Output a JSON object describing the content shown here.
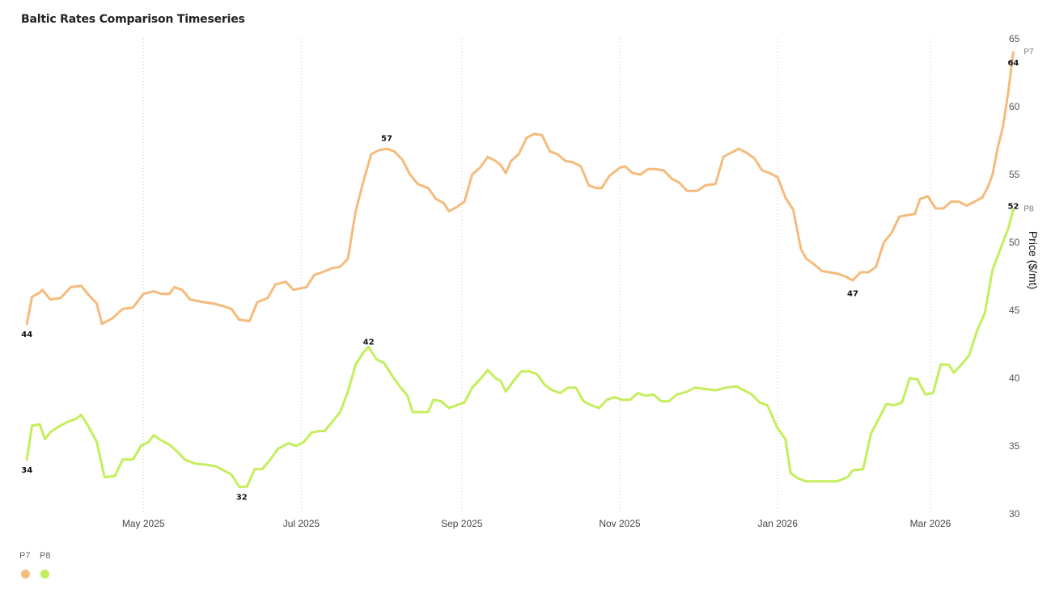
{
  "chart_data": {
    "type": "line",
    "title": "Baltic Rates Comparison Timeseries",
    "ylabel": "Price ($/mt)",
    "xlabel": "",
    "ylim": [
      30,
      65
    ],
    "yticks": [
      30,
      35,
      40,
      45,
      50,
      55,
      60,
      65
    ],
    "xlim": [
      "2025-03-16",
      "2026-03-25"
    ],
    "xticks": [
      {
        "date": "2025-05-01",
        "label": "May 2025"
      },
      {
        "date": "2025-07-01",
        "label": "Jul 2025"
      },
      {
        "date": "2025-09-01",
        "label": "Sep 2025"
      },
      {
        "date": "2025-11-01",
        "label": "Nov 2025"
      },
      {
        "date": "2026-01-01",
        "label": "Jan 2026"
      },
      {
        "date": "2026-03-01",
        "label": "Mar 2026"
      }
    ],
    "vertical_gridlines": true,
    "horizontal_gridlines": false,
    "axis_position": "right",
    "legend_position": "bottom-left",
    "series": [
      {
        "name": "P7",
        "color": "#F5BB7C",
        "points": [
          [
            "2025-03-17",
            44.0
          ],
          [
            "2025-03-19",
            46.0
          ],
          [
            "2025-03-22",
            46.3
          ],
          [
            "2025-03-23",
            46.5
          ],
          [
            "2025-03-26",
            45.8
          ],
          [
            "2025-03-30",
            45.9
          ],
          [
            "2025-04-03",
            46.7
          ],
          [
            "2025-04-07",
            46.8
          ],
          [
            "2025-04-10",
            46.1
          ],
          [
            "2025-04-13",
            45.5
          ],
          [
            "2025-04-15",
            44.0
          ],
          [
            "2025-04-19",
            44.4
          ],
          [
            "2025-04-23",
            45.1
          ],
          [
            "2025-04-27",
            45.2
          ],
          [
            "2025-05-01",
            46.2
          ],
          [
            "2025-05-05",
            46.4
          ],
          [
            "2025-05-08",
            46.2
          ],
          [
            "2025-05-11",
            46.2
          ],
          [
            "2025-05-13",
            46.7
          ],
          [
            "2025-05-16",
            46.5
          ],
          [
            "2025-05-19",
            45.8
          ],
          [
            "2025-05-24",
            45.6
          ],
          [
            "2025-05-28",
            45.5
          ],
          [
            "2025-06-01",
            45.3
          ],
          [
            "2025-06-04",
            45.1
          ],
          [
            "2025-06-07",
            44.3
          ],
          [
            "2025-06-11",
            44.2
          ],
          [
            "2025-06-14",
            45.6
          ],
          [
            "2025-06-18",
            45.9
          ],
          [
            "2025-06-21",
            46.9
          ],
          [
            "2025-06-25",
            47.1
          ],
          [
            "2025-06-28",
            46.5
          ],
          [
            "2025-07-03",
            46.7
          ],
          [
            "2025-07-06",
            47.6
          ],
          [
            "2025-07-09",
            47.8
          ],
          [
            "2025-07-13",
            48.1
          ],
          [
            "2025-07-16",
            48.2
          ],
          [
            "2025-07-19",
            48.8
          ],
          [
            "2025-07-22",
            52.3
          ],
          [
            "2025-07-25",
            54.5
          ],
          [
            "2025-07-28",
            56.5
          ],
          [
            "2025-07-31",
            56.8
          ],
          [
            "2025-08-03",
            56.9
          ],
          [
            "2025-08-06",
            56.7
          ],
          [
            "2025-08-09",
            56.1
          ],
          [
            "2025-08-12",
            55.0
          ],
          [
            "2025-08-15",
            54.3
          ],
          [
            "2025-08-19",
            54.0
          ],
          [
            "2025-08-22",
            53.2
          ],
          [
            "2025-08-25",
            52.9
          ],
          [
            "2025-08-27",
            52.3
          ],
          [
            "2025-08-30",
            52.6
          ],
          [
            "2025-09-02",
            53.0
          ],
          [
            "2025-09-05",
            55.0
          ],
          [
            "2025-09-08",
            55.5
          ],
          [
            "2025-09-11",
            56.3
          ],
          [
            "2025-09-14",
            56.0
          ],
          [
            "2025-09-16",
            55.7
          ],
          [
            "2025-09-18",
            55.1
          ],
          [
            "2025-09-20",
            56.0
          ],
          [
            "2025-09-23",
            56.5
          ],
          [
            "2025-09-26",
            57.7
          ],
          [
            "2025-09-29",
            58.0
          ],
          [
            "2025-10-02",
            57.9
          ],
          [
            "2025-10-05",
            56.7
          ],
          [
            "2025-10-08",
            56.5
          ],
          [
            "2025-10-11",
            56.0
          ],
          [
            "2025-10-14",
            55.9
          ],
          [
            "2025-10-17",
            55.6
          ],
          [
            "2025-10-20",
            54.2
          ],
          [
            "2025-10-23",
            54.0
          ],
          [
            "2025-10-25",
            54.0
          ],
          [
            "2025-10-28",
            54.9
          ],
          [
            "2025-11-01",
            55.5
          ],
          [
            "2025-11-03",
            55.6
          ],
          [
            "2025-11-06",
            55.1
          ],
          [
            "2025-11-09",
            55.0
          ],
          [
            "2025-11-12",
            55.4
          ],
          [
            "2025-11-15",
            55.4
          ],
          [
            "2025-11-18",
            55.3
          ],
          [
            "2025-11-21",
            54.7
          ],
          [
            "2025-11-24",
            54.4
          ],
          [
            "2025-11-27",
            53.8
          ],
          [
            "2025-12-01",
            53.8
          ],
          [
            "2025-12-04",
            54.2
          ],
          [
            "2025-12-08",
            54.3
          ],
          [
            "2025-12-11",
            56.3
          ],
          [
            "2025-12-14",
            56.6
          ],
          [
            "2025-12-17",
            56.9
          ],
          [
            "2025-12-20",
            56.6
          ],
          [
            "2025-12-23",
            56.2
          ],
          [
            "2025-12-26",
            55.3
          ],
          [
            "2025-12-29",
            55.1
          ],
          [
            "2026-01-01",
            54.8
          ],
          [
            "2026-01-04",
            53.3
          ],
          [
            "2026-01-07",
            52.4
          ],
          [
            "2026-01-10",
            49.5
          ],
          [
            "2026-01-12",
            48.8
          ],
          [
            "2026-01-15",
            48.4
          ],
          [
            "2026-01-18",
            47.9
          ],
          [
            "2026-01-21",
            47.8
          ],
          [
            "2026-01-24",
            47.7
          ],
          [
            "2026-01-27",
            47.5
          ],
          [
            "2026-01-30",
            47.2
          ],
          [
            "2026-02-02",
            47.8
          ],
          [
            "2026-02-05",
            47.8
          ],
          [
            "2026-02-08",
            48.2
          ],
          [
            "2026-02-11",
            50.0
          ],
          [
            "2026-02-14",
            50.7
          ],
          [
            "2026-02-17",
            51.9
          ],
          [
            "2026-02-20",
            52.0
          ],
          [
            "2026-02-23",
            52.1
          ],
          [
            "2026-02-25",
            53.2
          ],
          [
            "2026-02-28",
            53.4
          ],
          [
            "2026-03-03",
            52.5
          ],
          [
            "2026-03-06",
            52.5
          ],
          [
            "2026-03-09",
            53.0
          ],
          [
            "2026-03-12",
            53.0
          ],
          [
            "2026-03-15",
            52.7
          ],
          [
            "2026-03-18",
            53.0
          ],
          [
            "2026-03-21",
            53.3
          ],
          [
            "2026-03-23",
            54.0
          ],
          [
            "2026-03-25",
            55.0
          ],
          [
            "2026-03-27",
            57.0
          ],
          [
            "2026-03-29",
            58.5
          ],
          [
            "2026-03-31",
            61.0
          ],
          [
            "2026-04-02",
            64.0
          ]
        ],
        "labels": [
          {
            "date": "2025-03-17",
            "value": 44,
            "text": "44",
            "pos": "below"
          },
          {
            "date": "2025-08-03",
            "value": 57,
            "text": "57",
            "pos": "above"
          },
          {
            "date": "2026-01-30",
            "value": 47,
            "text": "47",
            "pos": "below"
          },
          {
            "date": "2026-04-02",
            "value": 64,
            "text": "64",
            "pos": "below"
          }
        ],
        "end_label": "P7"
      },
      {
        "name": "P8",
        "color": "#C4EE5C",
        "points": [
          [
            "2025-03-17",
            34.0
          ],
          [
            "2025-03-19",
            36.5
          ],
          [
            "2025-03-22",
            36.6
          ],
          [
            "2025-03-24",
            35.5
          ],
          [
            "2025-03-26",
            36.0
          ],
          [
            "2025-03-29",
            36.4
          ],
          [
            "2025-04-02",
            36.8
          ],
          [
            "2025-04-05",
            37.0
          ],
          [
            "2025-04-07",
            37.3
          ],
          [
            "2025-04-09",
            36.7
          ],
          [
            "2025-04-13",
            35.3
          ],
          [
            "2025-04-16",
            32.7
          ],
          [
            "2025-04-20",
            32.8
          ],
          [
            "2025-04-23",
            34.0
          ],
          [
            "2025-04-27",
            34.0
          ],
          [
            "2025-04-30",
            35.0
          ],
          [
            "2025-05-03",
            35.3
          ],
          [
            "2025-05-05",
            35.8
          ],
          [
            "2025-05-08",
            35.4
          ],
          [
            "2025-05-11",
            35.1
          ],
          [
            "2025-05-14",
            34.6
          ],
          [
            "2025-05-17",
            34.0
          ],
          [
            "2025-05-21",
            33.7
          ],
          [
            "2025-05-26",
            33.6
          ],
          [
            "2025-05-29",
            33.5
          ],
          [
            "2025-06-01",
            33.2
          ],
          [
            "2025-06-04",
            32.9
          ],
          [
            "2025-06-07",
            32.0
          ],
          [
            "2025-06-10",
            32.0
          ],
          [
            "2025-06-13",
            33.3
          ],
          [
            "2025-06-16",
            33.3
          ],
          [
            "2025-06-19",
            34.0
          ],
          [
            "2025-06-22",
            34.8
          ],
          [
            "2025-06-26",
            35.2
          ],
          [
            "2025-06-29",
            35.0
          ],
          [
            "2025-07-02",
            35.3
          ],
          [
            "2025-07-05",
            36.0
          ],
          [
            "2025-07-08",
            36.1
          ],
          [
            "2025-07-10",
            36.1
          ],
          [
            "2025-07-13",
            36.8
          ],
          [
            "2025-07-16",
            37.5
          ],
          [
            "2025-07-19",
            39.0
          ],
          [
            "2025-07-22",
            41.0
          ],
          [
            "2025-07-25",
            41.9
          ],
          [
            "2025-07-27",
            42.3
          ],
          [
            "2025-07-30",
            41.4
          ],
          [
            "2025-08-02",
            41.1
          ],
          [
            "2025-08-05",
            40.2
          ],
          [
            "2025-08-08",
            39.4
          ],
          [
            "2025-08-11",
            38.7
          ],
          [
            "2025-08-13",
            37.5
          ],
          [
            "2025-08-16",
            37.5
          ],
          [
            "2025-08-19",
            37.5
          ],
          [
            "2025-08-21",
            38.4
          ],
          [
            "2025-08-24",
            38.3
          ],
          [
            "2025-08-27",
            37.8
          ],
          [
            "2025-08-30",
            38.0
          ],
          [
            "2025-09-02",
            38.2
          ],
          [
            "2025-09-05",
            39.3
          ],
          [
            "2025-09-08",
            39.9
          ],
          [
            "2025-09-11",
            40.6
          ],
          [
            "2025-09-14",
            40.0
          ],
          [
            "2025-09-16",
            39.8
          ],
          [
            "2025-09-18",
            39.0
          ],
          [
            "2025-09-21",
            39.8
          ],
          [
            "2025-09-24",
            40.5
          ],
          [
            "2025-09-27",
            40.5
          ],
          [
            "2025-09-30",
            40.3
          ],
          [
            "2025-10-03",
            39.5
          ],
          [
            "2025-10-06",
            39.1
          ],
          [
            "2025-10-09",
            38.9
          ],
          [
            "2025-10-12",
            39.3
          ],
          [
            "2025-10-15",
            39.3
          ],
          [
            "2025-10-18",
            38.3
          ],
          [
            "2025-10-21",
            38.0
          ],
          [
            "2025-10-24",
            37.8
          ],
          [
            "2025-10-27",
            38.4
          ],
          [
            "2025-10-30",
            38.6
          ],
          [
            "2025-11-02",
            38.4
          ],
          [
            "2025-11-05",
            38.4
          ],
          [
            "2025-11-08",
            38.9
          ],
          [
            "2025-11-11",
            38.7
          ],
          [
            "2025-11-14",
            38.8
          ],
          [
            "2025-11-17",
            38.3
          ],
          [
            "2025-11-20",
            38.3
          ],
          [
            "2025-11-23",
            38.8
          ],
          [
            "2025-11-27",
            39.0
          ],
          [
            "2025-11-30",
            39.3
          ],
          [
            "2025-12-04",
            39.2
          ],
          [
            "2025-12-08",
            39.1
          ],
          [
            "2025-12-12",
            39.3
          ],
          [
            "2025-12-16",
            39.4
          ],
          [
            "2025-12-19",
            39.1
          ],
          [
            "2025-12-22",
            38.8
          ],
          [
            "2025-12-25",
            38.2
          ],
          [
            "2025-12-28",
            38.0
          ],
          [
            "2026-01-01",
            36.3
          ],
          [
            "2026-01-04",
            35.5
          ],
          [
            "2026-01-06",
            33.0
          ],
          [
            "2026-01-09",
            32.6
          ],
          [
            "2026-01-12",
            32.4
          ],
          [
            "2026-01-16",
            32.4
          ],
          [
            "2026-01-20",
            32.4
          ],
          [
            "2026-01-24",
            32.4
          ],
          [
            "2026-01-28",
            32.7
          ],
          [
            "2026-01-30",
            33.2
          ],
          [
            "2026-02-03",
            33.3
          ],
          [
            "2026-02-06",
            35.9
          ],
          [
            "2026-02-09",
            37.0
          ],
          [
            "2026-02-12",
            38.1
          ],
          [
            "2026-02-15",
            38.0
          ],
          [
            "2026-02-18",
            38.2
          ],
          [
            "2026-02-21",
            40.0
          ],
          [
            "2026-02-24",
            39.9
          ],
          [
            "2026-02-27",
            38.8
          ],
          [
            "2026-03-02",
            38.9
          ],
          [
            "2026-03-05",
            41.0
          ],
          [
            "2026-03-08",
            41.0
          ],
          [
            "2026-03-10",
            40.4
          ],
          [
            "2026-03-13",
            41.0
          ],
          [
            "2026-03-16",
            41.7
          ],
          [
            "2026-03-19",
            43.5
          ],
          [
            "2026-03-22",
            44.8
          ],
          [
            "2026-03-25",
            48.0
          ],
          [
            "2026-03-28",
            49.5
          ],
          [
            "2026-03-31",
            51.0
          ],
          [
            "2026-04-02",
            52.4
          ]
        ],
        "labels": [
          {
            "date": "2025-03-17",
            "value": 34,
            "text": "34",
            "pos": "below"
          },
          {
            "date": "2025-06-08",
            "value": 32,
            "text": "32",
            "pos": "below"
          },
          {
            "date": "2025-07-27",
            "value": 42,
            "text": "42",
            "pos": "above"
          },
          {
            "date": "2026-04-02",
            "value": 52,
            "text": "52",
            "pos": "above"
          }
        ],
        "end_label": "P8"
      }
    ]
  },
  "legend": {
    "items": [
      {
        "label": "P7",
        "color": "#F5BB7C"
      },
      {
        "label": "P8",
        "color": "#C4EE5C"
      }
    ]
  }
}
